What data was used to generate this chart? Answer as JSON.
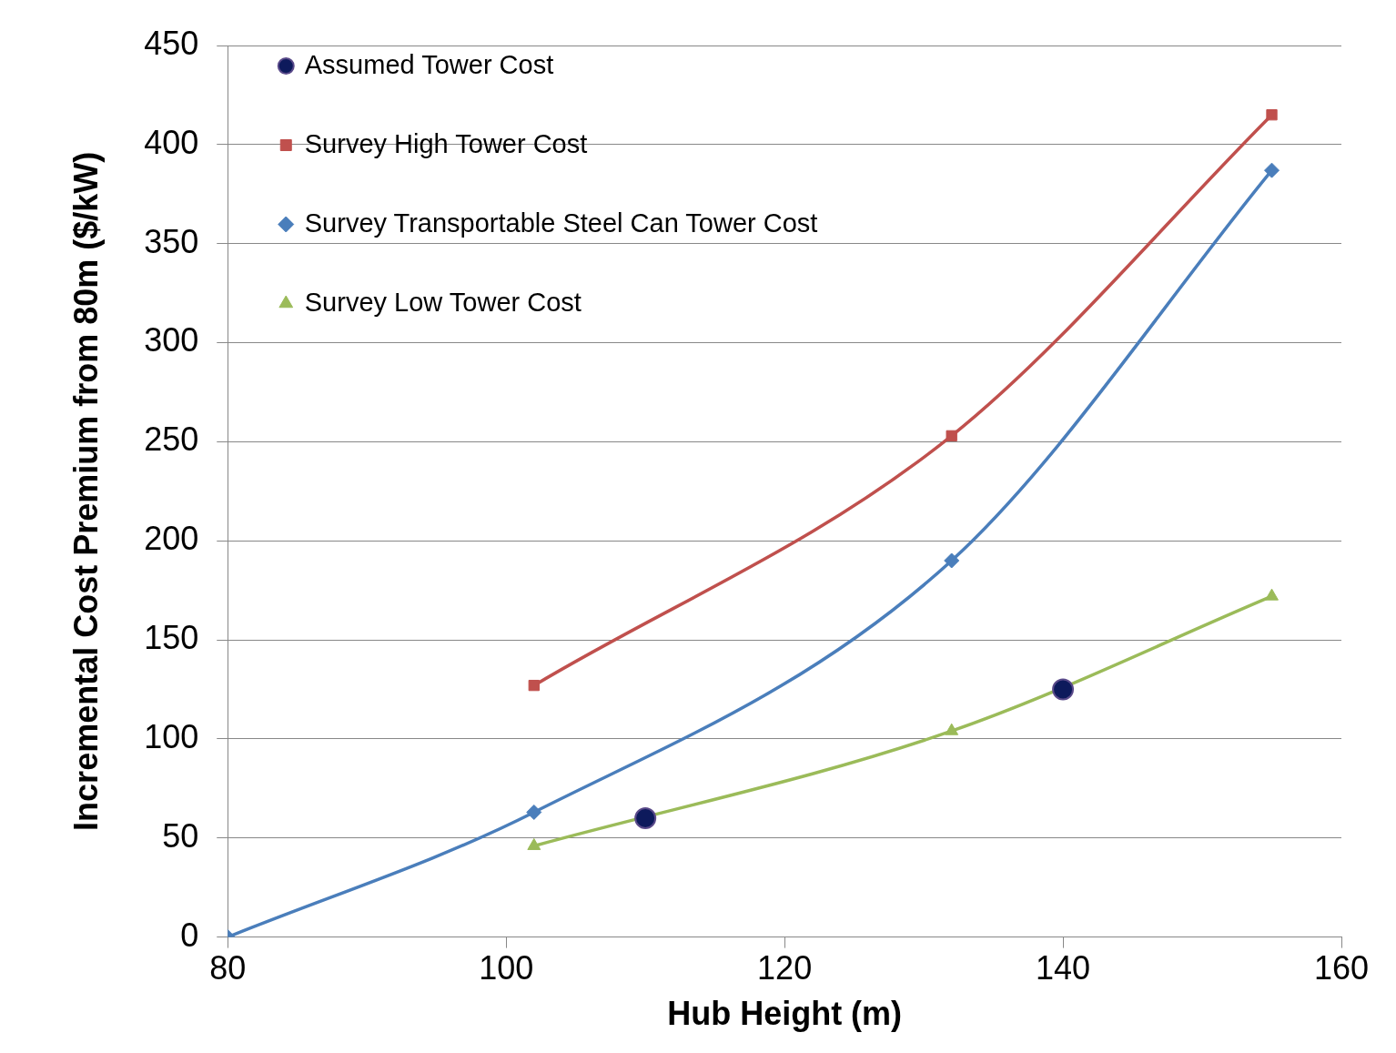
{
  "chart_data": {
    "type": "line",
    "xlabel": "Hub Height (m)",
    "ylabel": "Incremental Cost Premium from 80m ($/kW)",
    "xlim": [
      80,
      160
    ],
    "xticks": [
      80,
      100,
      120,
      140,
      160
    ],
    "ylim": [
      0,
      450
    ],
    "yticks": [
      0,
      50,
      100,
      150,
      200,
      250,
      300,
      350,
      400,
      450
    ],
    "grid": "y",
    "legend": "top left",
    "series": [
      {
        "name": "Assumed Tower Cost",
        "type": "scatter",
        "marker": "circle",
        "color": "#0d1a5c",
        "x": [
          110,
          140
        ],
        "values": [
          60,
          125
        ]
      },
      {
        "name": "Survey High Tower Cost",
        "marker": "square",
        "color": "#c0504d",
        "x": [
          102,
          132,
          155
        ],
        "values": [
          127,
          253,
          415
        ]
      },
      {
        "name": "Survey Transportable Steel Can Tower Cost",
        "marker": "diamond",
        "color": "#4a7ebb",
        "x": [
          80,
          102,
          132,
          155
        ],
        "values": [
          0,
          63,
          190,
          387
        ]
      },
      {
        "name": "Survey Low Tower Cost",
        "marker": "triangle",
        "color": "#9bbb59",
        "x": [
          102,
          132,
          155
        ],
        "values": [
          46,
          104,
          172
        ]
      }
    ]
  }
}
